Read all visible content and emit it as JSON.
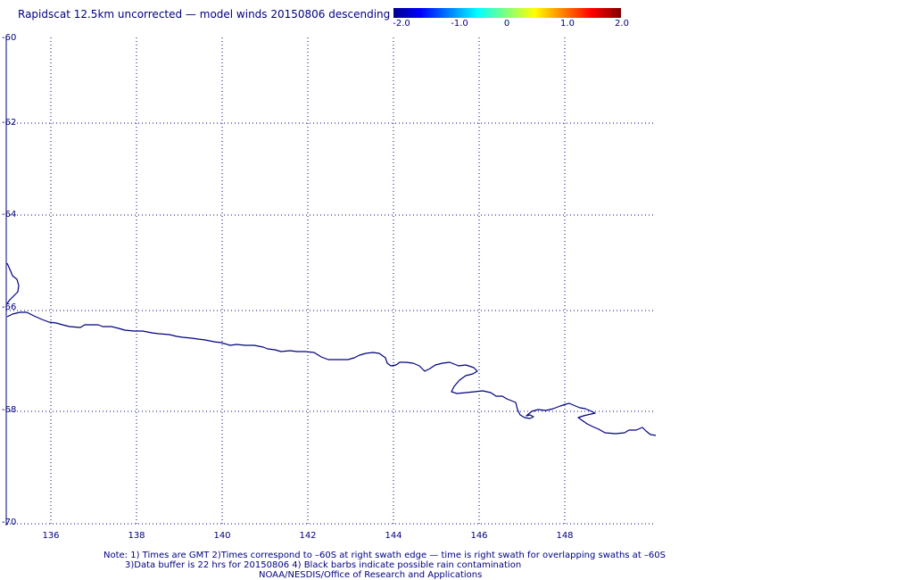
{
  "title": "Rapidscat 12.5km uncorrected — model winds 20150806 descending",
  "colorbar": {
    "min": -2.0,
    "max": 2.0,
    "tick_labels": [
      "-2.0",
      "-1.0",
      "0",
      "1.0",
      "2.0"
    ],
    "colors": [
      "#00008f",
      "#0000ff",
      "#00ffff",
      "#ffff00",
      "#ff0000",
      "#800000"
    ]
  },
  "map": {
    "lat_range": [
      -70,
      -60
    ],
    "lon_range": [
      135,
      150
    ],
    "lat_labels": [
      "-60",
      "-62",
      "-64",
      "-66",
      "-68",
      "-70"
    ],
    "lon_labels": [
      "136",
      "138",
      "140",
      "142",
      "144",
      "146",
      "148"
    ],
    "grid": "dotted",
    "coastline_color": "#000080"
  },
  "notes": {
    "line1": "Note: 1) Times are GMT 2)Times correspond to –60S at right swath edge — time is right swath for overlapping swaths at –60S",
    "line2": "3)Data buffer is 22 hrs for 20150806 4) Black barbs indicate possible rain contamination",
    "credit": "NOAA/NESDIS/Office of Research and Applications"
  }
}
